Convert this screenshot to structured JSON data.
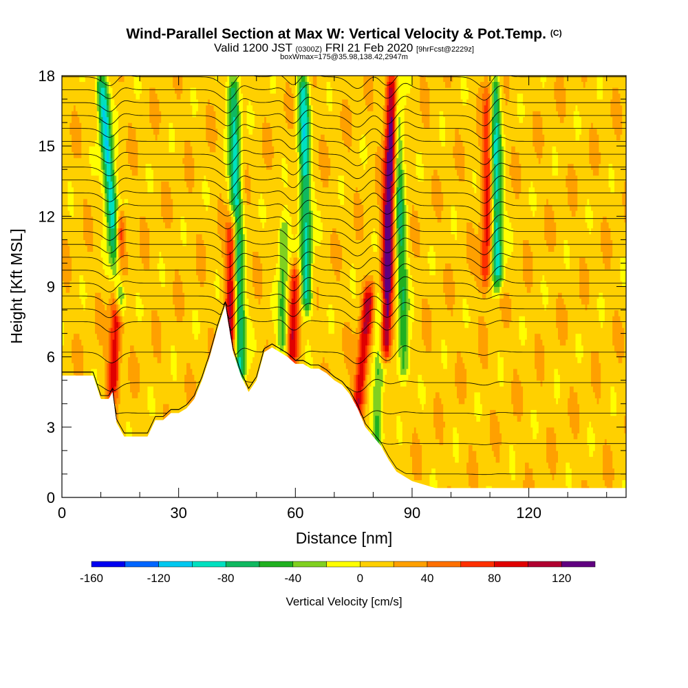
{
  "header": {
    "title": "Wind-Parallel Section at Max W: Vertical Velocity & Pot.Temp.",
    "copyright": "(C)",
    "valid_main": "Valid 1200 JST",
    "valid_z": "(0300Z)",
    "valid_date": "FRI 21 Feb 2020",
    "forecast": "[9hrFcst@2229z]",
    "box": "boxWmax=175@35.98,138.42,2947m"
  },
  "chart_data": {
    "type": "heatmap",
    "xlabel": "Distance [nm]",
    "ylabel": "Height [Kft MSL]",
    "xlim": [
      0,
      145
    ],
    "ylim": [
      0,
      18
    ],
    "x_ticks": [
      0,
      30,
      60,
      90,
      120
    ],
    "y_ticks": [
      0,
      3,
      6,
      9,
      12,
      15,
      18
    ],
    "x_minor_step": 10,
    "y_minor_step": 1,
    "colorbar": {
      "label": "Vertical Velocity [cm/s]",
      "min": -160,
      "max": 140,
      "step": 20,
      "tick_values": [
        -160,
        -120,
        -80,
        -40,
        0,
        40,
        80,
        120
      ],
      "colors": [
        "#0000f0",
        "#0066ff",
        "#00c8f0",
        "#00e0c0",
        "#10b860",
        "#20b020",
        "#80d020",
        "#ffff00",
        "#ffd000",
        "#ffa000",
        "#ff7000",
        "#ff3000",
        "#e00000",
        "#b00030",
        "#600080"
      ]
    },
    "terrain_kft": [
      [
        0,
        5.2
      ],
      [
        4,
        5.2
      ],
      [
        8,
        5.2
      ],
      [
        10,
        4.2
      ],
      [
        12,
        4.2
      ],
      [
        13,
        4.5
      ],
      [
        14,
        3.2
      ],
      [
        16,
        2.6
      ],
      [
        18,
        2.6
      ],
      [
        20,
        2.6
      ],
      [
        22,
        2.6
      ],
      [
        24,
        3.3
      ],
      [
        26,
        3.3
      ],
      [
        28,
        3.6
      ],
      [
        30,
        3.6
      ],
      [
        32,
        3.8
      ],
      [
        34,
        4.2
      ],
      [
        36,
        5.0
      ],
      [
        38,
        6.0
      ],
      [
        40,
        7.2
      ],
      [
        42,
        8.2
      ],
      [
        44,
        6.2
      ],
      [
        46,
        5.2
      ],
      [
        48,
        4.5
      ],
      [
        50,
        5.0
      ],
      [
        52,
        6.2
      ],
      [
        54,
        6.4
      ],
      [
        56,
        6.2
      ],
      [
        58,
        6.0
      ],
      [
        60,
        5.7
      ],
      [
        62,
        5.7
      ],
      [
        64,
        5.5
      ],
      [
        66,
        5.5
      ],
      [
        68,
        5.3
      ],
      [
        70,
        5.0
      ],
      [
        72,
        4.8
      ],
      [
        74,
        4.4
      ],
      [
        76,
        3.8
      ],
      [
        78,
        3.0
      ],
      [
        80,
        2.6
      ],
      [
        82,
        2.2
      ],
      [
        84,
        1.6
      ],
      [
        86,
        1.1
      ],
      [
        88,
        0.9
      ],
      [
        90,
        0.7
      ],
      [
        92,
        0.6
      ],
      [
        94,
        0.5
      ],
      [
        96,
        0.4
      ],
      [
        145,
        0.4
      ]
    ],
    "updrafts": [
      {
        "x": 13,
        "w": 85,
        "bottom": 4.3,
        "top": 12,
        "tilt": 2
      },
      {
        "x": 43,
        "w": 95,
        "bottom": 5.5,
        "top": 12,
        "tilt": 1
      },
      {
        "x": 59,
        "w": 80,
        "bottom": 5.5,
        "top": 10,
        "tilt": 1
      },
      {
        "x": 76,
        "w": 90,
        "bottom": 3.5,
        "top": 9,
        "tilt": 3
      },
      {
        "x": 83,
        "w": 140,
        "bottom": 6,
        "top": 18,
        "tilt": 2
      },
      {
        "x": 109,
        "w": 80,
        "bottom": 9,
        "top": 18,
        "tilt": 1
      }
    ],
    "downdrafts": [
      {
        "x": 15,
        "w": -120,
        "bottom": 8,
        "top": 18,
        "tilt": -5
      },
      {
        "x": 46,
        "w": -100,
        "bottom": 5,
        "top": 18,
        "tilt": -2
      },
      {
        "x": 57,
        "w": -60,
        "bottom": 6,
        "top": 12,
        "tilt": 0
      },
      {
        "x": 63,
        "w": -100,
        "bottom": 8,
        "top": 18,
        "tilt": -1
      },
      {
        "x": 81,
        "w": -60,
        "bottom": 2,
        "top": 9,
        "tilt": 1
      },
      {
        "x": 88,
        "w": -70,
        "bottom": 5,
        "top": 18,
        "tilt": -2
      },
      {
        "x": 112,
        "w": -110,
        "bottom": 9,
        "top": 18,
        "tilt": -1
      }
    ]
  }
}
